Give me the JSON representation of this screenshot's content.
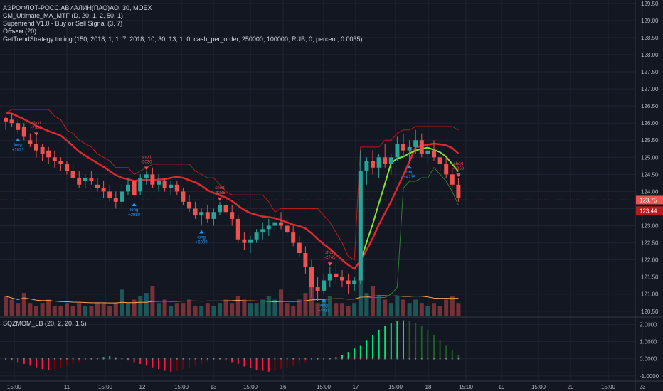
{
  "legend": {
    "symbol_line": "АЭРОФЛОТ-РОСС.АВИАЛИН(ПАО)АО, 30, MOEX",
    "indicators": [
      "CM_Ultimate_MA_MTF (D, 20, 1, 2, 50, 1)",
      "Supertrend V1.0 - Buy or Sell Signal (3, 7)",
      "Объем (20)",
      "GetTrendStrategy timing (150, 2018, 1, 1, 7, 2018, 10, 30, 13, 1, 0, cash_per_order, 250000, 100000, RUB, 0, percent, 0.0035)"
    ],
    "oscillator": "SQZMOM_LB (20, 2, 20, 1.5)"
  },
  "price_axis": {
    "ticks": [
      "129.50",
      "129.00",
      "128.50",
      "128.00",
      "127.50",
      "127.00",
      "126.50",
      "126.00",
      "125.50",
      "125.00",
      "124.50",
      "124.00",
      "123.50",
      "123.00",
      "122.50",
      "122.00",
      "121.50",
      "121.00",
      "120.50"
    ],
    "last_price_label": "123.75",
    "secondary_label": "123.44"
  },
  "osc_axis": {
    "ticks": [
      "2.0000",
      "1.0000",
      "0.0000",
      "-1.0000"
    ]
  },
  "time_axis": {
    "labels": [
      "15:00",
      "11",
      "15:00",
      "12",
      "15:00",
      "13",
      "15:00",
      "16",
      "15:00",
      "17",
      "15:00",
      "18",
      "15:00",
      "19",
      "15:00",
      "20",
      "15:00",
      "23"
    ]
  },
  "markers": [
    {
      "type": "sell",
      "text": "short",
      "value": "-2550"
    },
    {
      "type": "buy",
      "text": "long",
      "value": "+1821"
    },
    {
      "type": "sell",
      "text": "short",
      "value": "-3030"
    },
    {
      "type": "buy",
      "text": "long",
      "value": "+3980"
    },
    {
      "type": "buy",
      "text": "long",
      "value": "+6009"
    },
    {
      "type": "sell",
      "text": "short",
      "value": "-4285"
    },
    {
      "type": "buy",
      "text": "long",
      "value": "+4015"
    },
    {
      "type": "sell",
      "text": "short",
      "value": "-2745"
    },
    {
      "type": "buy",
      "text": "long",
      "value": "+4235"
    },
    {
      "type": "sell",
      "text": "short",
      "value": "-4350"
    }
  ],
  "colors": {
    "background": "#131722",
    "up": "#26a69a",
    "down": "#ef5350",
    "ma": "#e0262d",
    "supertrend_up": "#2e7d32",
    "supertrend_down": "#b71c1c",
    "ma_fast": "#7ee82b",
    "volume_ma": "#f0a35c",
    "last_price": "#ef5350",
    "buy": "#2196f3",
    "sell": "#ef5350"
  },
  "chart_data": {
    "type": "candlestick",
    "title": "АЭРОФЛОТ-РОСС.АВИАЛИН(ПАО)АО, 30, MOEX",
    "ylim": [
      120.35,
      129.6
    ],
    "ohlc": [
      [
        126.15,
        126.2,
        125.8,
        126.05
      ],
      [
        126.1,
        126.3,
        125.9,
        126.0
      ],
      [
        126.0,
        126.1,
        125.7,
        125.8
      ],
      [
        125.9,
        126.0,
        125.5,
        125.6
      ],
      [
        125.5,
        125.7,
        125.3,
        125.4
      ],
      [
        125.4,
        125.6,
        125.0,
        125.2
      ],
      [
        125.3,
        125.4,
        124.9,
        125.1
      ],
      [
        125.2,
        125.3,
        124.8,
        125.0
      ],
      [
        125.0,
        125.2,
        124.7,
        124.9
      ],
      [
        124.9,
        125.0,
        124.6,
        124.8
      ],
      [
        124.8,
        124.9,
        124.5,
        124.6
      ],
      [
        124.6,
        124.8,
        124.3,
        124.4
      ],
      [
        124.4,
        124.6,
        124.1,
        124.2
      ],
      [
        124.3,
        124.5,
        124.1,
        124.4
      ],
      [
        124.4,
        124.6,
        124.2,
        124.3
      ],
      [
        124.2,
        124.4,
        124.0,
        124.1
      ],
      [
        124.1,
        124.3,
        123.8,
        124.0
      ],
      [
        124.0,
        124.2,
        123.7,
        123.8
      ],
      [
        123.8,
        124.0,
        123.5,
        123.7
      ],
      [
        123.7,
        124.2,
        123.5,
        124.0
      ],
      [
        124.0,
        124.4,
        123.9,
        124.2
      ],
      [
        124.3,
        124.4,
        123.8,
        123.9
      ],
      [
        124.0,
        124.5,
        123.9,
        124.4
      ],
      [
        124.4,
        124.6,
        124.2,
        124.5
      ],
      [
        124.5,
        124.7,
        124.1,
        124.2
      ],
      [
        124.2,
        124.5,
        124.0,
        124.3
      ],
      [
        124.3,
        124.4,
        124.0,
        124.1
      ],
      [
        124.1,
        124.3,
        123.9,
        124.2
      ],
      [
        124.2,
        124.3,
        123.9,
        124.0
      ],
      [
        124.0,
        124.1,
        123.6,
        123.7
      ],
      [
        123.7,
        123.9,
        123.4,
        123.5
      ],
      [
        123.5,
        123.7,
        123.2,
        123.3
      ],
      [
        123.3,
        123.5,
        123.0,
        123.4
      ],
      [
        123.4,
        123.6,
        123.1,
        123.2
      ],
      [
        123.2,
        123.5,
        123.0,
        123.4
      ],
      [
        123.4,
        123.7,
        123.3,
        123.6
      ],
      [
        123.6,
        123.8,
        123.3,
        123.4
      ],
      [
        123.4,
        123.6,
        123.0,
        123.2
      ],
      [
        123.2,
        123.3,
        122.5,
        122.6
      ],
      [
        122.6,
        122.8,
        122.3,
        122.5
      ],
      [
        122.5,
        122.7,
        122.2,
        122.6
      ],
      [
        122.6,
        122.9,
        122.5,
        122.8
      ],
      [
        122.8,
        123.1,
        122.6,
        122.9
      ],
      [
        122.9,
        123.2,
        122.7,
        123.0
      ],
      [
        123.0,
        123.3,
        122.8,
        123.1
      ],
      [
        123.1,
        123.4,
        122.9,
        123.0
      ],
      [
        123.0,
        123.2,
        122.7,
        122.8
      ],
      [
        122.8,
        123.0,
        122.4,
        122.5
      ],
      [
        122.5,
        122.7,
        122.1,
        122.2
      ],
      [
        122.2,
        122.4,
        121.6,
        121.8
      ],
      [
        121.8,
        122.0,
        120.9,
        121.2
      ],
      [
        121.2,
        121.5,
        120.8,
        121.1
      ],
      [
        121.1,
        121.6,
        121.0,
        121.4
      ],
      [
        121.4,
        121.8,
        121.2,
        121.6
      ],
      [
        121.6,
        121.9,
        121.3,
        121.5
      ],
      [
        121.5,
        121.7,
        121.2,
        121.4
      ],
      [
        121.4,
        121.6,
        121.0,
        121.3
      ],
      [
        121.3,
        121.5,
        121.1,
        121.4
      ],
      [
        121.4,
        125.2,
        121.3,
        124.6
      ],
      [
        124.6,
        125.0,
        124.2,
        124.9
      ],
      [
        124.9,
        125.2,
        124.5,
        124.7
      ],
      [
        124.7,
        125.1,
        124.4,
        125.0
      ],
      [
        125.0,
        125.4,
        124.7,
        124.8
      ],
      [
        124.8,
        125.1,
        124.5,
        125.0
      ],
      [
        125.0,
        125.6,
        124.9,
        125.4
      ],
      [
        125.4,
        125.7,
        125.0,
        125.2
      ],
      [
        125.2,
        125.5,
        124.9,
        125.3
      ],
      [
        125.3,
        125.8,
        125.1,
        125.5
      ],
      [
        125.5,
        125.7,
        125.0,
        125.1
      ],
      [
        125.1,
        125.4,
        124.8,
        125.2
      ],
      [
        125.2,
        125.5,
        124.9,
        125.0
      ],
      [
        125.0,
        125.2,
        124.6,
        124.8
      ],
      [
        124.8,
        125.0,
        124.4,
        124.5
      ],
      [
        124.5,
        124.7,
        124.1,
        124.2
      ],
      [
        124.2,
        124.4,
        123.7,
        123.8
      ]
    ],
    "volume": [
      6,
      5,
      4,
      7,
      4,
      3,
      4,
      5,
      3,
      3,
      4,
      3,
      4,
      3,
      3,
      4,
      4,
      3,
      4,
      8,
      4,
      5,
      6,
      7,
      9,
      4,
      5,
      3,
      4,
      4,
      5,
      3,
      3,
      4,
      3,
      4,
      5,
      4,
      6,
      5,
      4,
      4,
      5,
      6,
      5,
      8,
      4,
      3,
      5,
      7,
      11,
      4,
      5,
      6,
      4,
      4,
      3,
      4,
      17,
      7,
      9,
      6,
      5,
      4,
      6,
      5,
      4,
      5,
      4,
      3,
      4,
      3,
      5,
      6,
      4
    ],
    "squeeze_momentum": [
      -0.05,
      -0.1,
      -0.2,
      -0.3,
      -0.4,
      -0.5,
      -0.6,
      -0.65,
      -0.6,
      -0.5,
      -0.4,
      -0.3,
      -0.2,
      -0.1,
      -0.05,
      0.05,
      0.1,
      0.15,
      0.1,
      0.05,
      -0.1,
      -0.2,
      -0.3,
      -0.4,
      -0.5,
      -0.6,
      -0.7,
      -0.75,
      -0.7,
      -0.6,
      -0.5,
      -0.4,
      -0.3,
      -0.2,
      -0.1,
      -0.05,
      -0.1,
      -0.2,
      -0.3,
      -0.45,
      -0.55,
      -0.65,
      -0.7,
      -0.75,
      -0.7,
      -0.6,
      -0.5,
      -0.4,
      -0.3,
      -0.2,
      -0.1,
      -0.05,
      -0.02,
      0.05,
      0.1,
      0.2,
      0.4,
      0.6,
      0.8,
      1.1,
      1.4,
      1.7,
      1.9,
      2.1,
      2.2,
      2.25,
      2.2,
      2.1,
      1.9,
      1.7,
      1.4,
      1.1,
      0.8,
      0.5,
      0.2
    ],
    "osc_ylim": [
      -1.3,
      2.4
    ]
  }
}
